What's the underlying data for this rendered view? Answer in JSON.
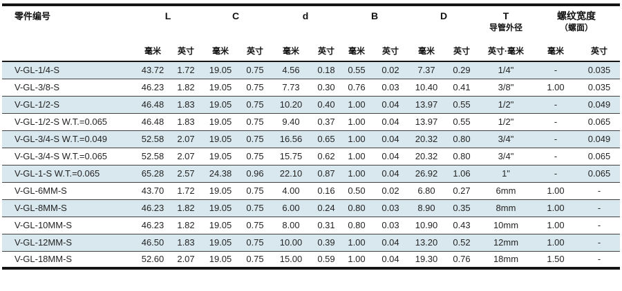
{
  "colors": {
    "stripe_blue": "#d9e8ee",
    "border_dark": "#141414",
    "row_separator": "#3e3e3e",
    "text": "#232323"
  },
  "table": {
    "header": {
      "part": "零件编号",
      "groups": [
        {
          "label": "L",
          "sublabel": "",
          "units": [
            "毫米",
            "英寸"
          ]
        },
        {
          "label": "C",
          "sublabel": "",
          "units": [
            "毫米",
            "英寸"
          ]
        },
        {
          "label": "d",
          "sublabel": "",
          "units": [
            "毫米",
            "英寸"
          ]
        },
        {
          "label": "B",
          "sublabel": "",
          "units": [
            "毫米",
            "英寸"
          ]
        },
        {
          "label": "D",
          "sublabel": "",
          "units": [
            "毫米",
            "英寸"
          ]
        },
        {
          "label": "T",
          "sublabel": "导管外径",
          "units": [
            "英寸·毫米"
          ]
        },
        {
          "label": "螺纹宽度",
          "sublabel": "（螺面）",
          "units": [
            "毫米",
            "英寸"
          ]
        }
      ]
    },
    "rows": [
      [
        "V-GL-1/4-S",
        "43.72",
        "1.72",
        "19.05",
        "0.75",
        "4.56",
        "0.18",
        "0.55",
        "0.02",
        "7.37",
        "0.29",
        "1/4\"",
        "-",
        "0.035"
      ],
      [
        "V-GL-3/8-S",
        "46.23",
        "1.82",
        "19.05",
        "0.75",
        "7.73",
        "0.30",
        "0.76",
        "0.03",
        "10.40",
        "0.41",
        "3/8\"",
        "1.00",
        "0.035"
      ],
      [
        "V-GL-1/2-S",
        "46.48",
        "1.83",
        "19.05",
        "0.75",
        "10.20",
        "0.40",
        "1.00",
        "0.04",
        "13.97",
        "0.55",
        "1/2\"",
        "-",
        "0.049"
      ],
      [
        "V-GL-1/2-S W.T.=0.065",
        "46.48",
        "1.83",
        "19.05",
        "0.75",
        "9.40",
        "0.37",
        "1.00",
        "0.04",
        "13.97",
        "0.55",
        "1/2\"",
        "-",
        "0.065"
      ],
      [
        "V-GL-3/4-S W.T.=0.049",
        "52.58",
        "2.07",
        "19.05",
        "0.75",
        "16.56",
        "0.65",
        "1.00",
        "0.04",
        "20.32",
        "0.80",
        "3/4\"",
        "-",
        "0.049"
      ],
      [
        "V-GL-3/4-S W.T.=0.065",
        "52.58",
        "2.07",
        "19.05",
        "0.75",
        "15.75",
        "0.62",
        "1.00",
        "0.04",
        "20.32",
        "0.80",
        "3/4\"",
        "-",
        "0.065"
      ],
      [
        "V-GL-1-S W.T.=0.065",
        "65.28",
        "2.57",
        "24.38",
        "0.96",
        "22.10",
        "0.87",
        "1.00",
        "0.04",
        "26.92",
        "1.06",
        "1\"",
        "-",
        "0.065"
      ],
      [
        "V-GL-6MM-S",
        "43.70",
        "1.72",
        "19.05",
        "0.75",
        "4.00",
        "0.16",
        "0.50",
        "0.02",
        "6.80",
        "0.27",
        "6mm",
        "1.00",
        "-"
      ],
      [
        "V-GL-8MM-S",
        "46.23",
        "1.82",
        "19.05",
        "0.75",
        "6.00",
        "0.24",
        "0.80",
        "0.03",
        "8.90",
        "0.35",
        "8mm",
        "1.00",
        "-"
      ],
      [
        "V-GL-10MM-S",
        "46.23",
        "1.82",
        "19.05",
        "0.75",
        "8.00",
        "0.31",
        "0.80",
        "0.03",
        "10.90",
        "0.43",
        "10mm",
        "1.00",
        "-"
      ],
      [
        "V-GL-12MM-S",
        "46.50",
        "1.83",
        "19.05",
        "0.75",
        "10.00",
        "0.39",
        "1.00",
        "0.04",
        "13.20",
        "0.52",
        "12mm",
        "1.00",
        "-"
      ],
      [
        "V-GL-18MM-S",
        "52.60",
        "2.07",
        "19.05",
        "0.75",
        "15.00",
        "0.59",
        "1.00",
        "0.04",
        "19.30",
        "0.76",
        "18mm",
        "1.50",
        "-"
      ]
    ]
  }
}
